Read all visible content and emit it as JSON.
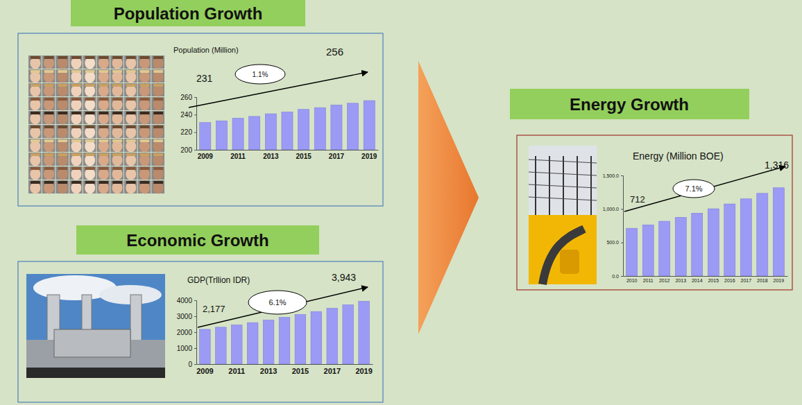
{
  "chart_data": [
    {
      "type": "bar",
      "title": "Population Growth",
      "subtitle": "Population (Million)",
      "categories": [
        "2009",
        null,
        "2011",
        null,
        "2013",
        null,
        "2015",
        null,
        "2017",
        null,
        "2019"
      ],
      "values": [
        231,
        233,
        236,
        238,
        241,
        243,
        246,
        248,
        251,
        253,
        256
      ],
      "color": "#9b9bf5",
      "ylim": [
        200,
        260
      ],
      "yticks": [
        200,
        220,
        240,
        260
      ],
      "grid": false,
      "annotations": [
        "231",
        "256",
        "1.1%"
      ]
    },
    {
      "type": "bar",
      "title": "Economic Growth",
      "subtitle": "GDP(Trllion IDR)",
      "categories": [
        "2009",
        null,
        "2011",
        null,
        "2013",
        null,
        "2015",
        null,
        "2017",
        null,
        "2019"
      ],
      "values": [
        2177,
        2310,
        2451,
        2600,
        2759,
        2927,
        3106,
        3295,
        3496,
        3710,
        3943
      ],
      "color": "#9b9bf5",
      "ylim": [
        0,
        4000
      ],
      "yticks": [
        0,
        1000,
        2000,
        3000,
        4000
      ],
      "grid": false,
      "annotations": [
        "2,177",
        "3,943",
        "6.1%"
      ]
    },
    {
      "type": "bar",
      "title": "Energy Growth",
      "subtitle": "Energy (Million BOE)",
      "categories": [
        "2010",
        "2011",
        "2012",
        "2013",
        "2014",
        "2015",
        "2016",
        "2017",
        "2018",
        "2019"
      ],
      "values": [
        712,
        763,
        817,
        875,
        937,
        1003,
        1075,
        1151,
        1233,
        1316
      ],
      "color": "#9b9bf5",
      "ylim": [
        0,
        1500
      ],
      "yticks": [
        {
          "value": 0,
          "label": "0.0"
        },
        {
          "value": 500,
          "label": "500.0"
        },
        {
          "value": 1000,
          "label": "1,000.0"
        },
        {
          "value": 1500,
          "label": "1,500.0"
        }
      ],
      "grid": false,
      "annotations": [
        "712",
        "1,316",
        "7.1%"
      ]
    }
  ]
}
